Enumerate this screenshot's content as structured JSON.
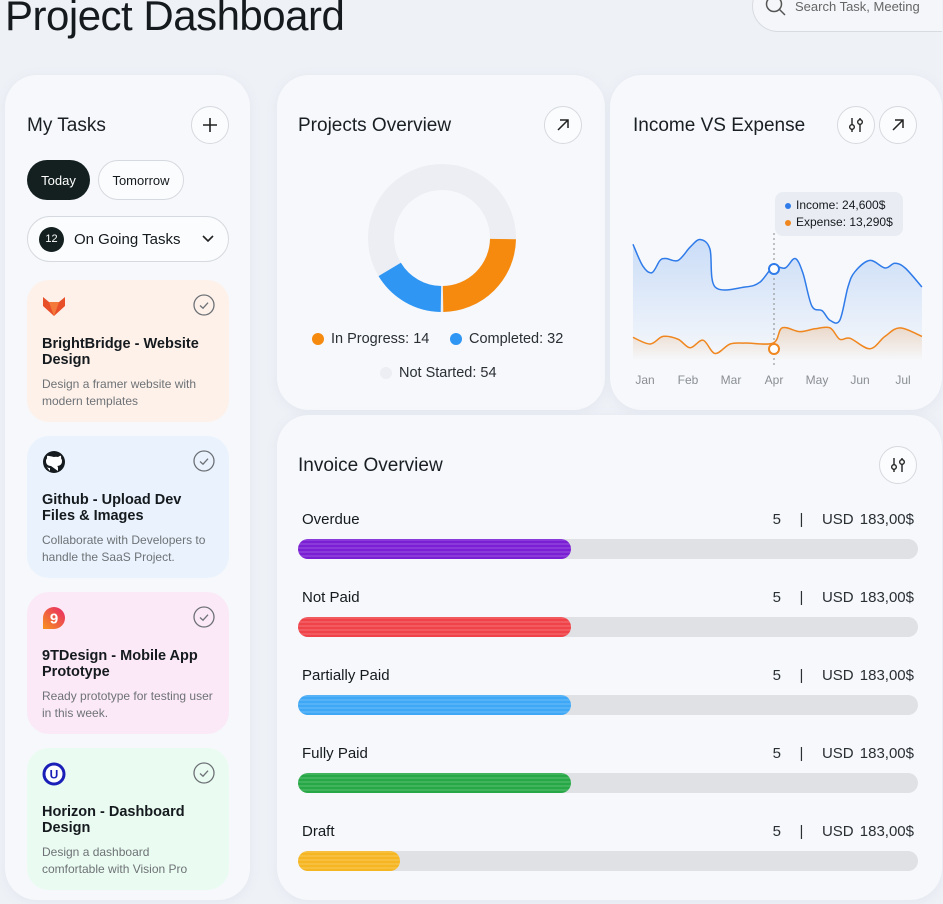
{
  "header": {
    "title": "Project Dashboard",
    "search_placeholder": "Search Task, Meeting"
  },
  "tasks": {
    "title": "My Tasks",
    "tab_today": "Today",
    "tab_tomorrow": "Tomorrow",
    "filter_count": "12",
    "filter_label": "On Going Tasks",
    "items": [
      {
        "title": "BrightBridge - Website Design",
        "desc": "Design a framer website with modern templates",
        "icon": "fox-logo-icon",
        "bg": "#fdf1ea"
      },
      {
        "title": "Github - Upload Dev Files & Images",
        "desc": "Collaborate with Developers to handle the SaaS Project.",
        "icon": "github-icon",
        "bg": "#eaf3fd"
      },
      {
        "title": "9TDesign - Mobile App Prototype",
        "desc": "Ready prototype for testing user in this week.",
        "icon": "9tdesign-logo-icon",
        "bg": "#fbe9f8"
      },
      {
        "title": "Horizon - Dashboard Design",
        "desc": "Design a dashboard comfortable with Vision Pro",
        "icon": "horizon-logo-icon",
        "bg": "#eafbf1"
      }
    ]
  },
  "projects": {
    "title": "Projects Overview",
    "legend": {
      "in_progress": "In Progress: 14",
      "completed": "Completed: 32",
      "not_started": "Not Started: 54"
    }
  },
  "income": {
    "title": "Income VS Expense",
    "tooltip_income": "Income: 24,600$",
    "tooltip_expense": "Expense: 13,290$"
  },
  "chart_data": {
    "type": "line",
    "title": "Income VS Expense",
    "categories": [
      "Jan",
      "Feb",
      "Mar",
      "Apr",
      "May",
      "Jun",
      "Jul"
    ],
    "ylim": [
      0,
      150
    ],
    "highlight_x": 3,
    "series": [
      {
        "name": "Income",
        "color": "#2f7bea",
        "x": [
          -0.28,
          -0.05,
          0.16,
          0.35,
          0.49,
          0.77,
          1.05,
          1.28,
          1.51,
          1.63,
          2.33,
          2.67,
          2.98,
          3.26,
          3.49,
          3.67,
          3.88,
          4.12,
          4.3,
          4.53,
          4.72,
          4.88,
          5.23,
          5.58,
          5.81,
          6.05,
          6.44
        ],
        "values": [
          125,
          102,
          95,
          108,
          110,
          108,
          122,
          130,
          120,
          80,
          80,
          85,
          101,
          100,
          110,
          95,
          60,
          55,
          45,
          45,
          80,
          96,
          108,
          100,
          105,
          100,
          80
        ]
      },
      {
        "name": "Expense",
        "color": "#f0861e",
        "x": [
          -0.28,
          0.12,
          0.42,
          0.77,
          1.05,
          1.35,
          1.63,
          1.98,
          2.33,
          2.98,
          3.19,
          3.6,
          3.95,
          4.3,
          4.53,
          4.77,
          5.23,
          5.58,
          5.93,
          6.44
        ],
        "values": [
          27,
          20,
          28,
          25,
          16,
          24,
          10,
          20,
          21,
          21,
          37,
          33,
          36,
          37,
          25,
          26,
          15,
          28,
          37,
          28
        ]
      }
    ]
  },
  "invoice": {
    "title": "Invoice Overview",
    "rows": [
      {
        "label": "Overdue",
        "count": "5",
        "sep": "|",
        "amount": "USD 183,00$",
        "progress": 0.44,
        "color": "#7a1fd4"
      },
      {
        "label": "Not Paid",
        "count": "5",
        "sep": "|",
        "amount": "USD 183,00$",
        "progress": 0.44,
        "color": "#ef4349"
      },
      {
        "label": "Partially Paid",
        "count": "5",
        "sep": "|",
        "amount": "USD 183,00$",
        "progress": 0.44,
        "color": "#3ea7f6"
      },
      {
        "label": "Fully Paid",
        "count": "5",
        "sep": "|",
        "amount": "USD 183,00$",
        "progress": 0.44,
        "color": "#27a846"
      },
      {
        "label": "Draft",
        "count": "5",
        "sep": "|",
        "amount": "USD 183,00$",
        "progress": 0.165,
        "color": "#f5b622"
      }
    ]
  },
  "colors": {
    "in_progress": "#f58a0f",
    "completed": "#2f96f3",
    "not_started": "#eceef3"
  }
}
